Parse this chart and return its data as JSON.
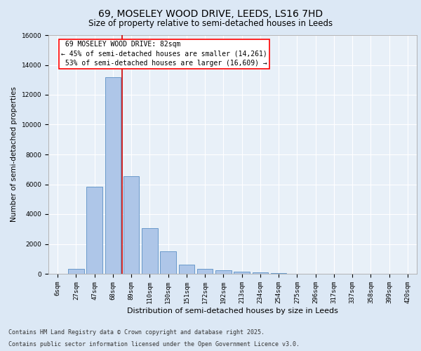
{
  "title_line1": "69, MOSELEY WOOD DRIVE, LEEDS, LS16 7HD",
  "title_line2": "Size of property relative to semi-detached houses in Leeds",
  "xlabel": "Distribution of semi-detached houses by size in Leeds",
  "ylabel": "Number of semi-detached properties",
  "categories": [
    "6sqm",
    "27sqm",
    "47sqm",
    "68sqm",
    "89sqm",
    "110sqm",
    "130sqm",
    "151sqm",
    "172sqm",
    "192sqm",
    "213sqm",
    "234sqm",
    "254sqm",
    "275sqm",
    "296sqm",
    "317sqm",
    "337sqm",
    "358sqm",
    "399sqm",
    "420sqm"
  ],
  "values": [
    0,
    320,
    5850,
    13200,
    6550,
    3050,
    1500,
    600,
    320,
    230,
    150,
    80,
    60,
    0,
    0,
    0,
    0,
    0,
    0,
    0
  ],
  "bar_color": "#aec6e8",
  "bar_edgecolor": "#5a8fc4",
  "marker_label": "69 MOSELEY WOOD DRIVE: 82sqm",
  "smaller_pct": "45%",
  "smaller_count": 14261,
  "larger_pct": "53%",
  "larger_count": 16609,
  "vline_color": "#cc0000",
  "vline_index": 3.5,
  "ylim": [
    0,
    16000
  ],
  "yticks": [
    0,
    2000,
    4000,
    6000,
    8000,
    10000,
    12000,
    14000,
    16000
  ],
  "background_color": "#dce8f5",
  "plot_bg_color": "#e8f0f8",
  "footer_line1": "Contains HM Land Registry data © Crown copyright and database right 2025.",
  "footer_line2": "Contains public sector information licensed under the Open Government Licence v3.0.",
  "title_fontsize": 10,
  "subtitle_fontsize": 8.5,
  "xlabel_fontsize": 8,
  "ylabel_fontsize": 7.5,
  "tick_fontsize": 6.5,
  "footer_fontsize": 6,
  "annotation_fontsize": 7
}
